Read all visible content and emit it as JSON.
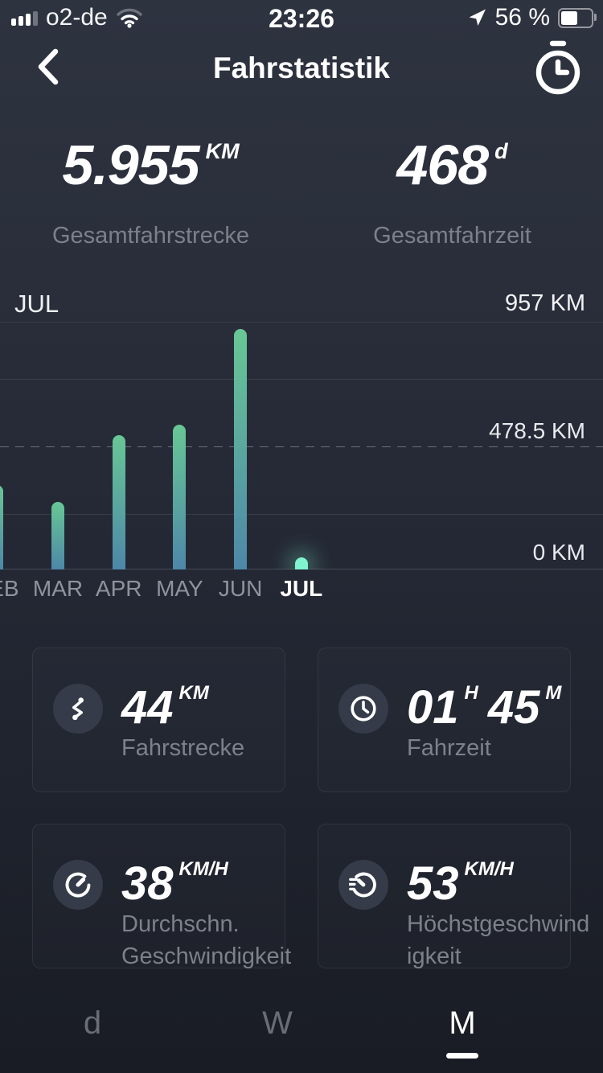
{
  "status_bar": {
    "carrier": "o2-de",
    "time": "23:26",
    "battery_percent_text": "56 %",
    "battery_level": 56,
    "signal_bars_filled": 3,
    "signal_bars_total": 4,
    "wifi_icon": "wifi-2of3",
    "location_icon": "location-arrow"
  },
  "header": {
    "title": "Fahrstatistik",
    "back_icon": "chevron-left",
    "history_icon": "stopwatch"
  },
  "totals": {
    "distance": {
      "value": "5.955",
      "unit": "KM",
      "label": "Gesamtfahrstrecke"
    },
    "time": {
      "value": "468",
      "unit": "d",
      "label": "Gesamtfahrzeit"
    }
  },
  "chart_data": {
    "type": "bar",
    "selected_month_label": "JUL",
    "categories": [
      "FEB",
      "MAR",
      "APR",
      "MAY",
      "JUN",
      "JUL"
    ],
    "values": [
      325,
      260,
      520,
      560,
      930,
      44
    ],
    "unit": "KM",
    "ylim": [
      0,
      957
    ],
    "selected_index": 5,
    "y_axis_labels": {
      "max": "957 KM",
      "mid": "478.5 KM",
      "zero": "0 KM"
    },
    "grid": true,
    "legend": "none",
    "colors": {
      "bar_gradient_top": "#68c795",
      "bar_gradient_bottom": "#4d87a8",
      "selected_bar": "#80f4cf"
    }
  },
  "cards": [
    {
      "icon": "route-icon",
      "segments": [
        {
          "value": "44",
          "unit": "KM"
        }
      ],
      "label": "Fahrstrecke"
    },
    {
      "icon": "clock-icon",
      "segments": [
        {
          "value": "01",
          "unit": "H"
        },
        {
          "value": "45",
          "unit": "M"
        }
      ],
      "label": "Fahrzeit"
    },
    {
      "icon": "speedometer-icon",
      "segments": [
        {
          "value": "38",
          "unit": "KM/H"
        }
      ],
      "label": "Durchschn.\nGeschwindigkeit"
    },
    {
      "icon": "max-speed-icon",
      "segments": [
        {
          "value": "53",
          "unit": "KM/H"
        }
      ],
      "label": "Höchstgeschwind\nigkeit"
    }
  ],
  "tabs": [
    {
      "label": "d",
      "active": false
    },
    {
      "label": "W",
      "active": false
    },
    {
      "label": "M",
      "active": true
    }
  ]
}
